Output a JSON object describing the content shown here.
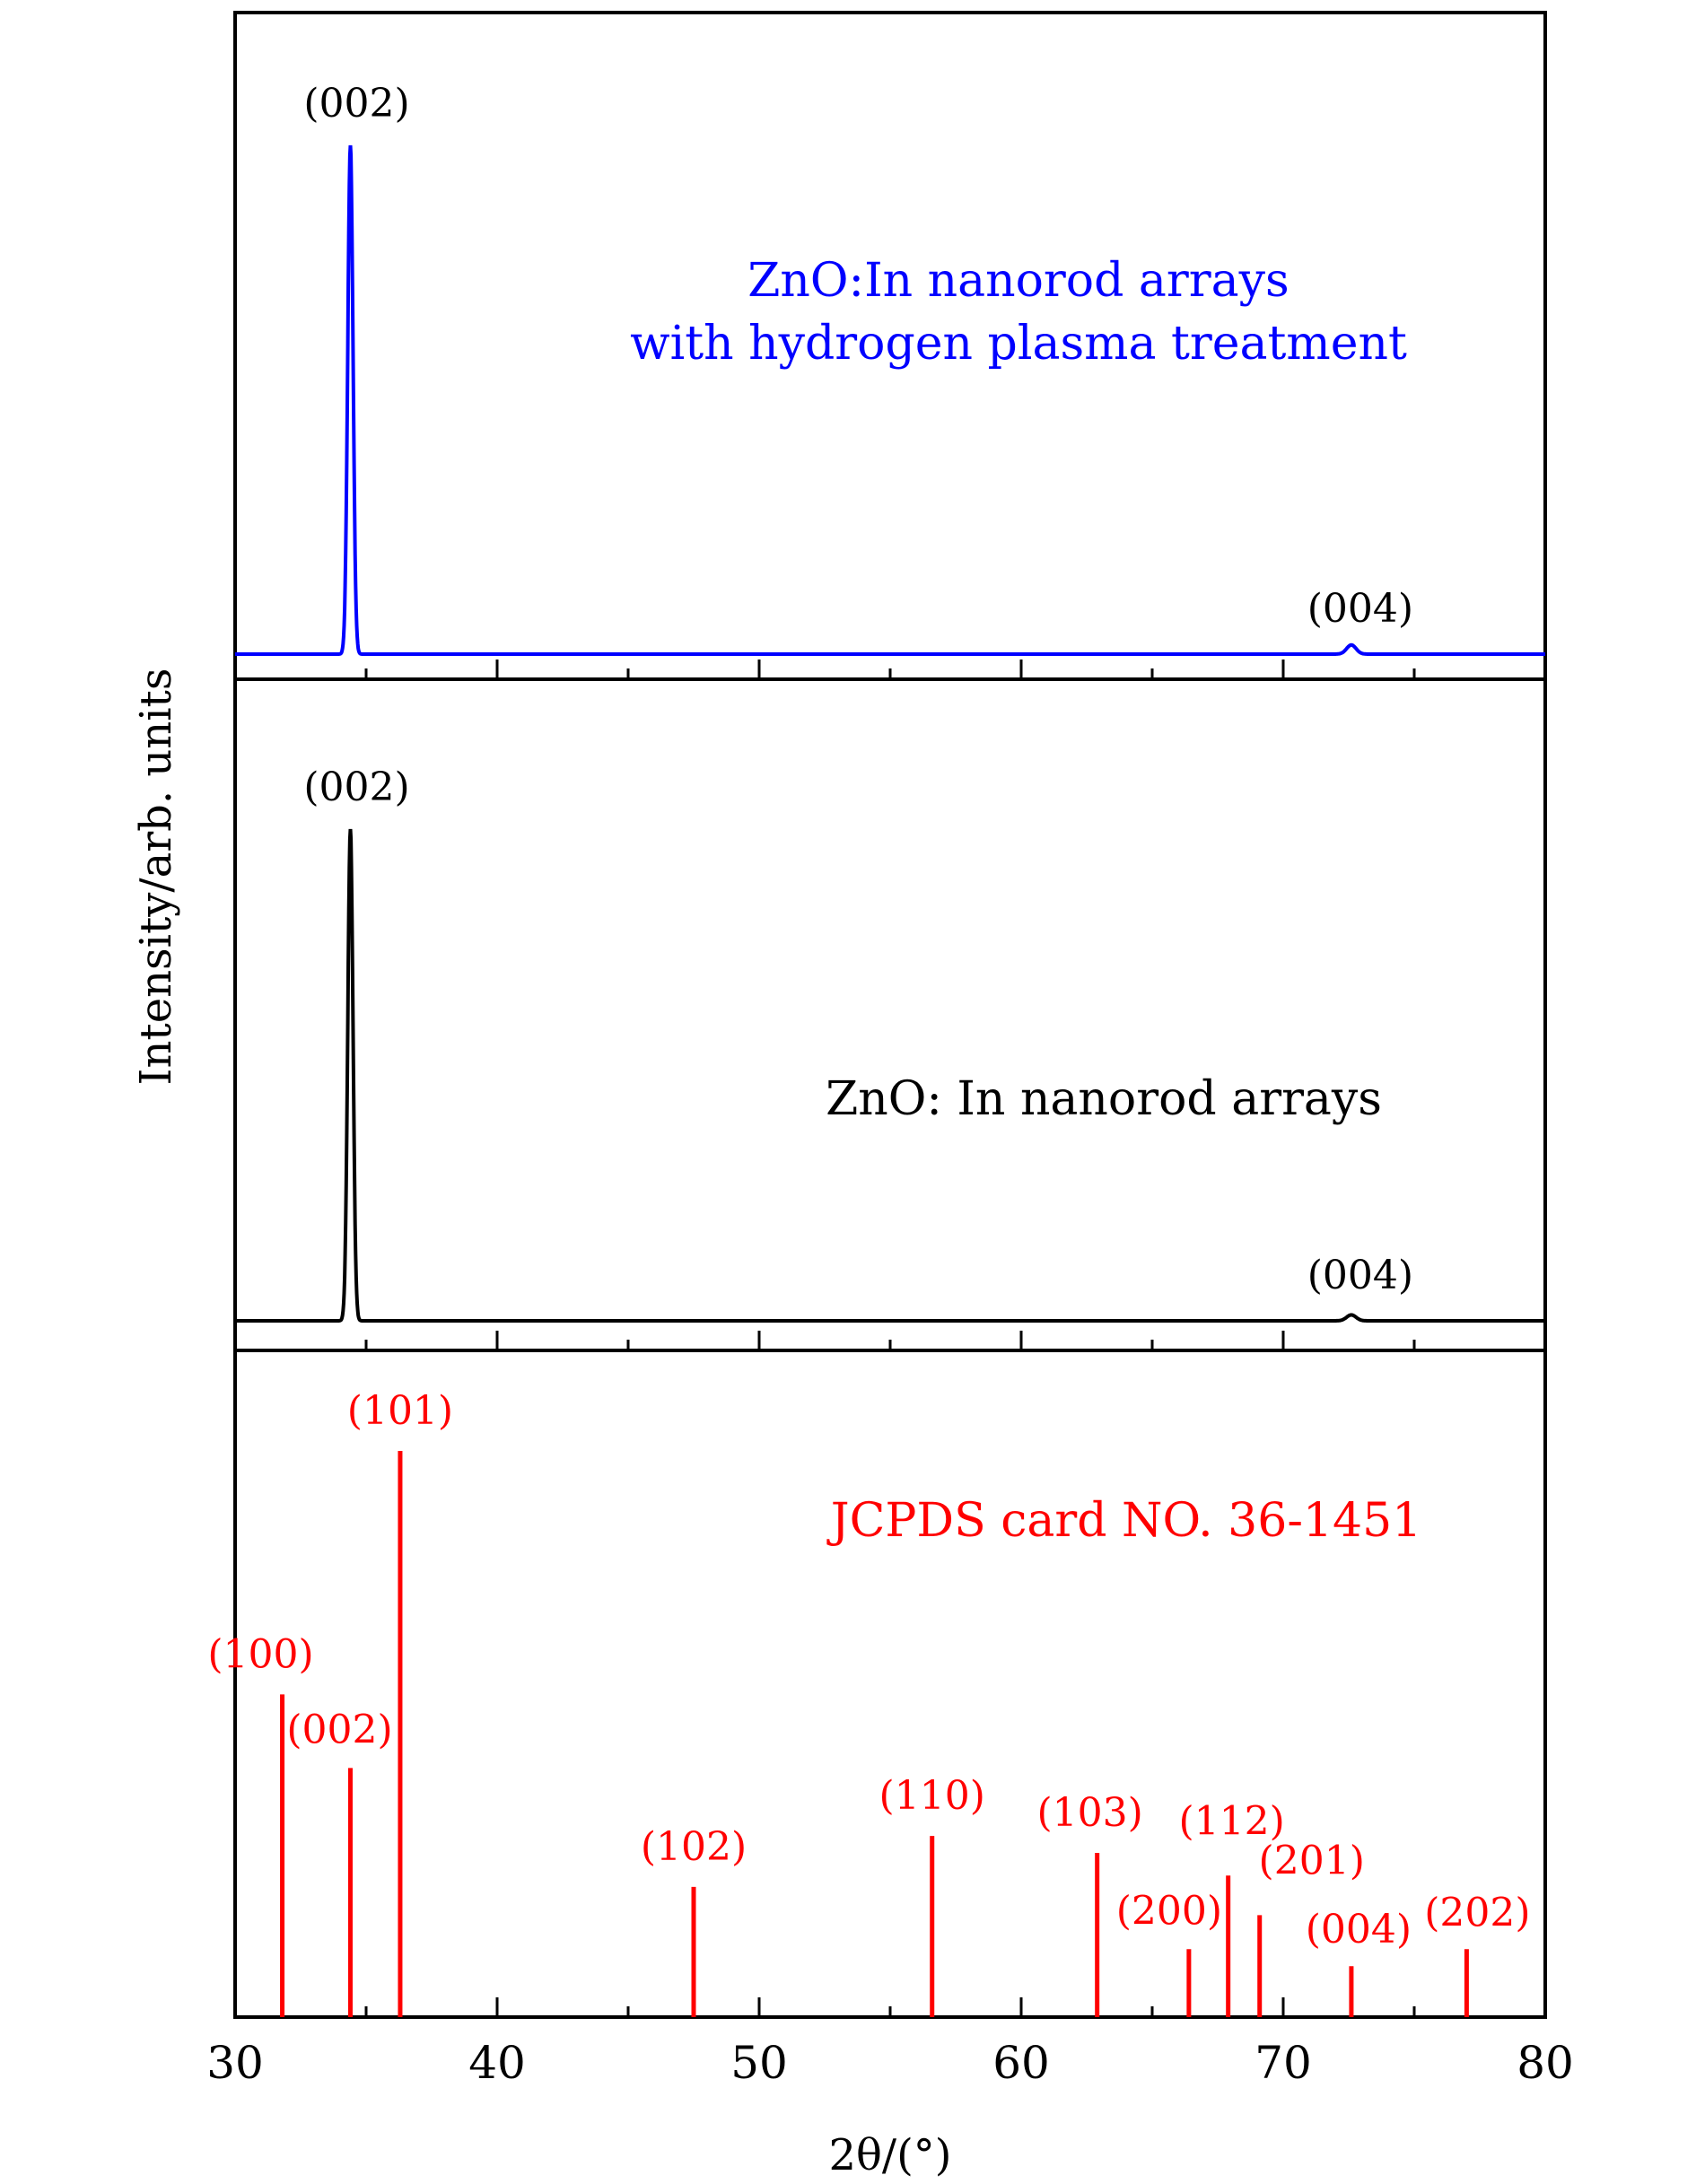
{
  "chart_data": {
    "type": "line",
    "xlim": [
      30,
      80
    ],
    "xticks": [
      30,
      40,
      50,
      60,
      70,
      80
    ],
    "xlabel": "2θ/(°)",
    "ylabel": "Intensity/arb. units",
    "panels": [
      {
        "id": "treated",
        "color": "#0000ff",
        "label_lines": [
          "ZnO:In nanorod arrays",
          "with hydrogen plasma treatment"
        ],
        "ylim": [
          0,
          1.05
        ],
        "peaks": [
          {
            "x": 34.4,
            "height": 1.0,
            "width": 0.1,
            "label": "(002)"
          },
          {
            "x": 72.6,
            "height": 0.018,
            "width": 0.18,
            "label": "(004)"
          }
        ]
      },
      {
        "id": "untreated",
        "color": "#000000",
        "label_lines": [
          "ZnO: In nanorod arrays"
        ],
        "ylim": [
          0,
          1.05
        ],
        "peaks": [
          {
            "x": 34.4,
            "height": 1.0,
            "width": 0.1,
            "label": "(002)"
          },
          {
            "x": 72.6,
            "height": 0.012,
            "width": 0.18,
            "label": "(004)"
          }
        ]
      },
      {
        "id": "jcpds",
        "color": "#ff0000",
        "label_lines": [
          "JCPDS card NO. 36-1451"
        ],
        "ylim": [
          0,
          115
        ],
        "sticks": [
          {
            "x": 31.8,
            "height": 57,
            "label": "(100)"
          },
          {
            "x": 34.4,
            "height": 44,
            "label": "(002)"
          },
          {
            "x": 36.3,
            "height": 100,
            "label": "(101)"
          },
          {
            "x": 47.5,
            "height": 23,
            "label": "(102)"
          },
          {
            "x": 56.6,
            "height": 32,
            "label": "(110)"
          },
          {
            "x": 62.9,
            "height": 29,
            "label": "(103)"
          },
          {
            "x": 66.4,
            "height": 12,
            "label": "(200)"
          },
          {
            "x": 67.9,
            "height": 25,
            "label": "(112)"
          },
          {
            "x": 69.1,
            "height": 18,
            "label": "(201)"
          },
          {
            "x": 72.6,
            "height": 9,
            "label": "(004)"
          },
          {
            "x": 77.0,
            "height": 12,
            "label": "(202)"
          }
        ]
      }
    ]
  }
}
